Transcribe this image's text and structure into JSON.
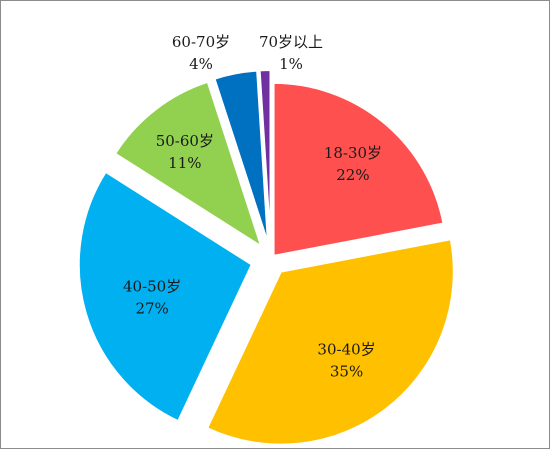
{
  "chart_data": {
    "type": "pie",
    "title": "",
    "legend": "none",
    "slices": [
      {
        "label": "18-30岁",
        "value": 22,
        "value_label": "22%",
        "color": "#ff5050"
      },
      {
        "label": "30-40岁",
        "value": 35,
        "value_label": "35%",
        "color": "#ffc000"
      },
      {
        "label": "40-50岁",
        "value": 27,
        "value_label": "27%",
        "color": "#00b0f0"
      },
      {
        "label": "50-60岁",
        "value": 11,
        "value_label": "11%",
        "color": "#92d050"
      },
      {
        "label": "60-70岁",
        "value": 4,
        "value_label": "4%",
        "color": "#0070c0"
      },
      {
        "label": "70岁以上",
        "value": 1,
        "value_label": "1%",
        "color": "#7030a0"
      }
    ]
  }
}
